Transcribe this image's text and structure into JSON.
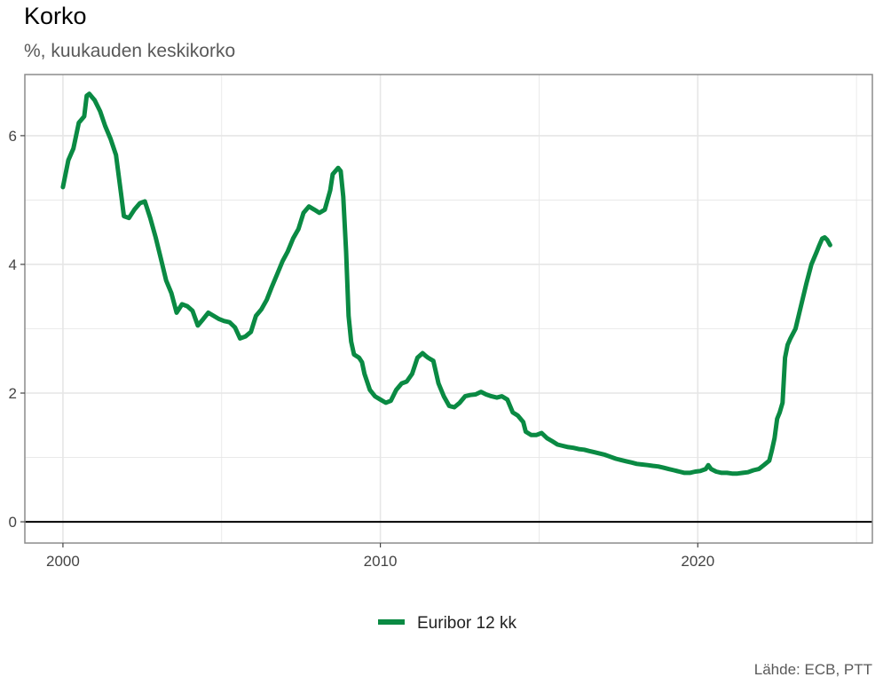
{
  "chart_data": {
    "type": "line",
    "title": "Korko",
    "subtitle": "%, kuukauden keskikorko",
    "xlabel": "",
    "ylabel": "",
    "caption": "Lähde: ECB, PTT",
    "xlim": [
      1998.8,
      2025.5
    ],
    "ylim": [
      -0.33,
      6.95
    ],
    "x_ticks": [
      2000,
      2010,
      2020
    ],
    "y_ticks": [
      0,
      2,
      4,
      6
    ],
    "grid": true,
    "legend_position": "bottom",
    "colors": {
      "series": "#0a8a43",
      "grid": "#e6e6e6",
      "frame": "#8c8c8c",
      "zero_line": "#000000"
    },
    "series": [
      {
        "name": "Euribor 12 kk",
        "points": [
          [
            2000.0,
            5.2
          ],
          [
            2000.17,
            5.62
          ],
          [
            2000.33,
            5.8
          ],
          [
            2000.5,
            6.2
          ],
          [
            2000.67,
            6.3
          ],
          [
            2000.75,
            6.62
          ],
          [
            2000.83,
            6.65
          ],
          [
            2001.0,
            6.55
          ],
          [
            2001.17,
            6.38
          ],
          [
            2001.33,
            6.15
          ],
          [
            2001.5,
            5.95
          ],
          [
            2001.67,
            5.7
          ],
          [
            2001.83,
            5.1
          ],
          [
            2001.92,
            4.75
          ],
          [
            2002.08,
            4.72
          ],
          [
            2002.25,
            4.85
          ],
          [
            2002.42,
            4.95
          ],
          [
            2002.58,
            4.98
          ],
          [
            2002.75,
            4.72
          ],
          [
            2002.92,
            4.42
          ],
          [
            2003.08,
            4.1
          ],
          [
            2003.25,
            3.75
          ],
          [
            2003.42,
            3.55
          ],
          [
            2003.58,
            3.25
          ],
          [
            2003.75,
            3.38
          ],
          [
            2003.92,
            3.35
          ],
          [
            2004.08,
            3.28
          ],
          [
            2004.25,
            3.05
          ],
          [
            2004.42,
            3.15
          ],
          [
            2004.58,
            3.25
          ],
          [
            2004.75,
            3.2
          ],
          [
            2004.92,
            3.15
          ],
          [
            2005.08,
            3.12
          ],
          [
            2005.25,
            3.1
          ],
          [
            2005.42,
            3.02
          ],
          [
            2005.58,
            2.85
          ],
          [
            2005.75,
            2.88
          ],
          [
            2005.92,
            2.95
          ],
          [
            2006.08,
            3.2
          ],
          [
            2006.25,
            3.3
          ],
          [
            2006.42,
            3.45
          ],
          [
            2006.58,
            3.65
          ],
          [
            2006.75,
            3.85
          ],
          [
            2006.92,
            4.05
          ],
          [
            2007.08,
            4.2
          ],
          [
            2007.25,
            4.4
          ],
          [
            2007.42,
            4.55
          ],
          [
            2007.58,
            4.8
          ],
          [
            2007.75,
            4.9
          ],
          [
            2007.92,
            4.85
          ],
          [
            2008.08,
            4.8
          ],
          [
            2008.25,
            4.85
          ],
          [
            2008.42,
            5.15
          ],
          [
            2008.5,
            5.4
          ],
          [
            2008.67,
            5.5
          ],
          [
            2008.75,
            5.45
          ],
          [
            2008.83,
            5.05
          ],
          [
            2008.92,
            4.2
          ],
          [
            2009.0,
            3.2
          ],
          [
            2009.08,
            2.8
          ],
          [
            2009.17,
            2.6
          ],
          [
            2009.33,
            2.55
          ],
          [
            2009.42,
            2.48
          ],
          [
            2009.5,
            2.3
          ],
          [
            2009.67,
            2.05
          ],
          [
            2009.83,
            1.95
          ],
          [
            2010.0,
            1.9
          ],
          [
            2010.17,
            1.85
          ],
          [
            2010.33,
            1.88
          ],
          [
            2010.5,
            2.05
          ],
          [
            2010.67,
            2.15
          ],
          [
            2010.83,
            2.18
          ],
          [
            2011.0,
            2.3
          ],
          [
            2011.17,
            2.55
          ],
          [
            2011.33,
            2.62
          ],
          [
            2011.42,
            2.58
          ],
          [
            2011.5,
            2.55
          ],
          [
            2011.67,
            2.5
          ],
          [
            2011.83,
            2.15
          ],
          [
            2012.0,
            1.95
          ],
          [
            2012.17,
            1.8
          ],
          [
            2012.33,
            1.78
          ],
          [
            2012.5,
            1.85
          ],
          [
            2012.67,
            1.95
          ],
          [
            2012.83,
            1.97
          ],
          [
            2013.0,
            1.98
          ],
          [
            2013.17,
            2.02
          ],
          [
            2013.33,
            1.98
          ],
          [
            2013.5,
            1.95
          ],
          [
            2013.67,
            1.93
          ],
          [
            2013.83,
            1.95
          ],
          [
            2014.0,
            1.9
          ],
          [
            2014.17,
            1.7
          ],
          [
            2014.33,
            1.65
          ],
          [
            2014.5,
            1.55
          ],
          [
            2014.58,
            1.4
          ],
          [
            2014.75,
            1.35
          ],
          [
            2014.92,
            1.35
          ],
          [
            2015.08,
            1.38
          ],
          [
            2015.25,
            1.3
          ],
          [
            2015.42,
            1.25
          ],
          [
            2015.58,
            1.2
          ],
          [
            2015.75,
            1.18
          ],
          [
            2015.92,
            1.16
          ],
          [
            2016.08,
            1.15
          ],
          [
            2016.25,
            1.13
          ],
          [
            2016.42,
            1.12
          ],
          [
            2016.58,
            1.1
          ],
          [
            2016.75,
            1.08
          ],
          [
            2016.92,
            1.06
          ],
          [
            2017.08,
            1.04
          ],
          [
            2017.25,
            1.01
          ],
          [
            2017.42,
            0.98
          ],
          [
            2017.58,
            0.96
          ],
          [
            2017.75,
            0.94
          ],
          [
            2017.92,
            0.92
          ],
          [
            2018.08,
            0.9
          ],
          [
            2018.25,
            0.89
          ],
          [
            2018.42,
            0.88
          ],
          [
            2018.58,
            0.87
          ],
          [
            2018.75,
            0.86
          ],
          [
            2018.92,
            0.84
          ],
          [
            2019.08,
            0.82
          ],
          [
            2019.25,
            0.8
          ],
          [
            2019.42,
            0.78
          ],
          [
            2019.58,
            0.76
          ],
          [
            2019.75,
            0.76
          ],
          [
            2019.92,
            0.78
          ],
          [
            2020.08,
            0.79
          ],
          [
            2020.25,
            0.82
          ],
          [
            2020.33,
            0.88
          ],
          [
            2020.42,
            0.82
          ],
          [
            2020.58,
            0.78
          ],
          [
            2020.75,
            0.76
          ],
          [
            2020.92,
            0.76
          ],
          [
            2021.08,
            0.75
          ],
          [
            2021.25,
            0.75
          ],
          [
            2021.42,
            0.76
          ],
          [
            2021.58,
            0.77
          ],
          [
            2021.75,
            0.8
          ],
          [
            2021.92,
            0.82
          ],
          [
            2022.08,
            0.88
          ],
          [
            2022.25,
            0.95
          ],
          [
            2022.33,
            1.1
          ],
          [
            2022.42,
            1.3
          ],
          [
            2022.5,
            1.6
          ],
          [
            2022.58,
            1.7
          ],
          [
            2022.67,
            1.85
          ],
          [
            2022.75,
            2.55
          ],
          [
            2022.83,
            2.75
          ],
          [
            2022.92,
            2.85
          ],
          [
            2023.08,
            3.0
          ],
          [
            2023.25,
            3.35
          ],
          [
            2023.42,
            3.7
          ],
          [
            2023.58,
            4.0
          ],
          [
            2023.75,
            4.2
          ],
          [
            2023.83,
            4.3
          ],
          [
            2023.92,
            4.4
          ],
          [
            2024.0,
            4.42
          ],
          [
            2024.08,
            4.38
          ],
          [
            2024.17,
            4.3
          ]
        ]
      }
    ]
  }
}
